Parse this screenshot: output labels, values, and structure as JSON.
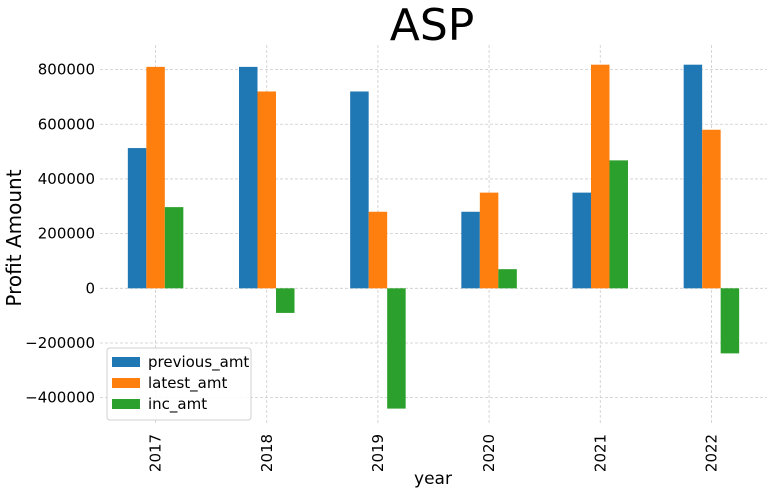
{
  "chart_data": {
    "type": "bar",
    "title": "ASP",
    "xlabel": "year",
    "ylabel": "Profit Amount",
    "categories": [
      "2017",
      "2018",
      "2019",
      "2020",
      "2021",
      "2022"
    ],
    "series": [
      {
        "name": "previous_amt",
        "color": "#1f77b4",
        "values": [
          513000,
          810000,
          720000,
          280000,
          350000,
          818000
        ]
      },
      {
        "name": "latest_amt",
        "color": "#ff7f0e",
        "values": [
          810000,
          720000,
          280000,
          350000,
          818000,
          580000
        ]
      },
      {
        "name": "inc_amt",
        "color": "#2ca02c",
        "values": [
          297000,
          -90000,
          -440000,
          70000,
          468000,
          -238000
        ]
      }
    ],
    "ylim": [
      -500000,
      890000
    ],
    "yticks": [
      -400000,
      -200000,
      0,
      200000,
      400000,
      600000,
      800000
    ],
    "ytick_labels": [
      "−400000",
      "−200000",
      "0",
      "200000",
      "400000",
      "600000",
      "800000"
    ],
    "grid": true,
    "legend_position": "lower-left"
  }
}
